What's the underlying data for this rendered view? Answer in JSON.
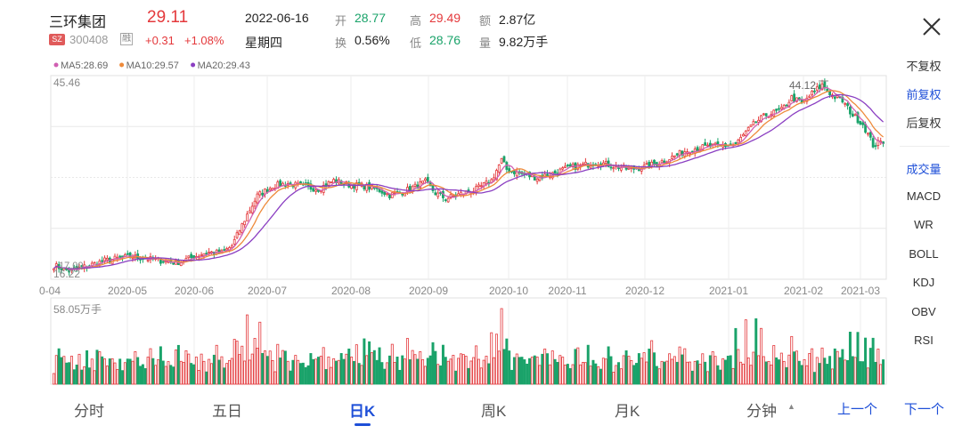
{
  "header": {
    "stock_name": "三环集团",
    "last_price": "29.11",
    "market_badge": "SZ",
    "code": "300408",
    "rzrq_badge": "融",
    "change_abs": "+0.31",
    "change_pct": "+1.08%",
    "date": "2022-06-16",
    "weekday": "星期四",
    "quote": [
      {
        "label": "开",
        "value": "28.77",
        "tone": "green"
      },
      {
        "label": "高",
        "value": "29.49",
        "tone": "red"
      },
      {
        "label": "额",
        "value": "2.87亿",
        "tone": "dark"
      },
      {
        "label": "换",
        "value": "0.56%",
        "tone": "dark"
      },
      {
        "label": "低",
        "value": "28.76",
        "tone": "green"
      },
      {
        "label": "量",
        "value": "9.82万手",
        "tone": "dark"
      }
    ]
  },
  "side_panel": {
    "adjust": [
      {
        "label": "不复权",
        "active": false
      },
      {
        "label": "前复权",
        "active": true
      },
      {
        "label": "后复权",
        "active": false
      }
    ],
    "indicators": [
      {
        "label": "成交量",
        "active": true
      },
      {
        "label": "MACD",
        "active": false
      },
      {
        "label": "WR",
        "active": false
      },
      {
        "label": "BOLL",
        "active": false
      },
      {
        "label": "KDJ",
        "active": false
      },
      {
        "label": "OBV",
        "active": false
      },
      {
        "label": "RSI",
        "active": false
      }
    ]
  },
  "tabs": [
    {
      "label": "分时",
      "active": false
    },
    {
      "label": "五日",
      "active": false
    },
    {
      "label": "日K",
      "active": true
    },
    {
      "label": "周K",
      "active": false
    },
    {
      "label": "月K",
      "active": false
    },
    {
      "label": "分钟",
      "active": false
    }
  ],
  "minute_arrow": "▲",
  "nav": {
    "prev": "上一个",
    "next": "下一个"
  },
  "colors": {
    "up": "#e4393c",
    "down": "#1aa36a",
    "ma5": "#d05fb2",
    "ma10": "#ee8a3a",
    "ma20": "#8b3fc2",
    "accent": "#1e4fd8"
  },
  "chart_data": {
    "type": "candlestick",
    "legend": [
      {
        "name": "MA5",
        "text": "MA5:28.69",
        "color": "#d05fb2"
      },
      {
        "name": "MA10",
        "text": "MA10:29.57",
        "color": "#ee8a3a"
      },
      {
        "name": "MA20",
        "text": "MA20:29.43",
        "color": "#8b3fc2"
      }
    ],
    "y_top_label": "45.46",
    "y_bottom_label": "16.22",
    "ylim": [
      16.22,
      45.46
    ],
    "max_label": "44.12",
    "min_label": "17.00",
    "x_labels": [
      "0-04",
      "2020-05",
      "2020-06",
      "2020-07",
      "2020-08",
      "2020-09",
      "2020-10",
      "2020-11",
      "2020-12",
      "2021-01",
      "2021-02",
      "2021-03"
    ],
    "volume_max_label": "58.05万手",
    "volume_max": 58.05,
    "volume_unit": "万手",
    "price_path": [
      [
        0,
        18.2
      ],
      [
        6,
        17.4
      ],
      [
        12,
        18.0
      ],
      [
        20,
        18.9
      ],
      [
        30,
        19.5
      ],
      [
        40,
        19.0
      ],
      [
        48,
        18.6
      ],
      [
        54,
        19.3
      ],
      [
        60,
        20.1
      ],
      [
        66,
        20.0
      ],
      [
        70,
        21.0
      ],
      [
        76,
        25.5
      ],
      [
        80,
        28.2
      ],
      [
        86,
        29.6
      ],
      [
        92,
        30.0
      ],
      [
        98,
        29.5
      ],
      [
        104,
        29.2
      ],
      [
        110,
        30.4
      ],
      [
        116,
        29.8
      ],
      [
        122,
        29.6
      ],
      [
        128,
        29.0
      ],
      [
        132,
        28.3
      ],
      [
        138,
        28.9
      ],
      [
        142,
        29.5
      ],
      [
        146,
        30.2
      ],
      [
        150,
        28.6
      ],
      [
        154,
        27.8
      ],
      [
        160,
        28.5
      ],
      [
        166,
        29.1
      ],
      [
        172,
        30.4
      ],
      [
        176,
        33.3
      ],
      [
        178,
        32.0
      ],
      [
        184,
        31.3
      ],
      [
        190,
        30.8
      ],
      [
        196,
        31.4
      ],
      [
        202,
        32.2
      ],
      [
        208,
        32.6
      ],
      [
        214,
        33.0
      ],
      [
        220,
        32.5
      ],
      [
        226,
        32.0
      ],
      [
        232,
        32.3
      ],
      [
        238,
        33.0
      ],
      [
        244,
        33.9
      ],
      [
        248,
        34.6
      ],
      [
        252,
        35.0
      ],
      [
        258,
        35.3
      ],
      [
        264,
        35.4
      ],
      [
        268,
        35.6
      ],
      [
        272,
        37.3
      ],
      [
        276,
        38.8
      ],
      [
        280,
        39.8
      ],
      [
        286,
        40.5
      ],
      [
        290,
        42.3
      ],
      [
        294,
        41.5
      ],
      [
        298,
        42.9
      ],
      [
        302,
        44.1
      ],
      [
        306,
        42.6
      ],
      [
        310,
        41.8
      ],
      [
        314,
        39.8
      ],
      [
        318,
        38.5
      ],
      [
        320,
        37.0
      ],
      [
        322,
        35.5
      ],
      [
        326,
        36.0
      ]
    ]
  }
}
